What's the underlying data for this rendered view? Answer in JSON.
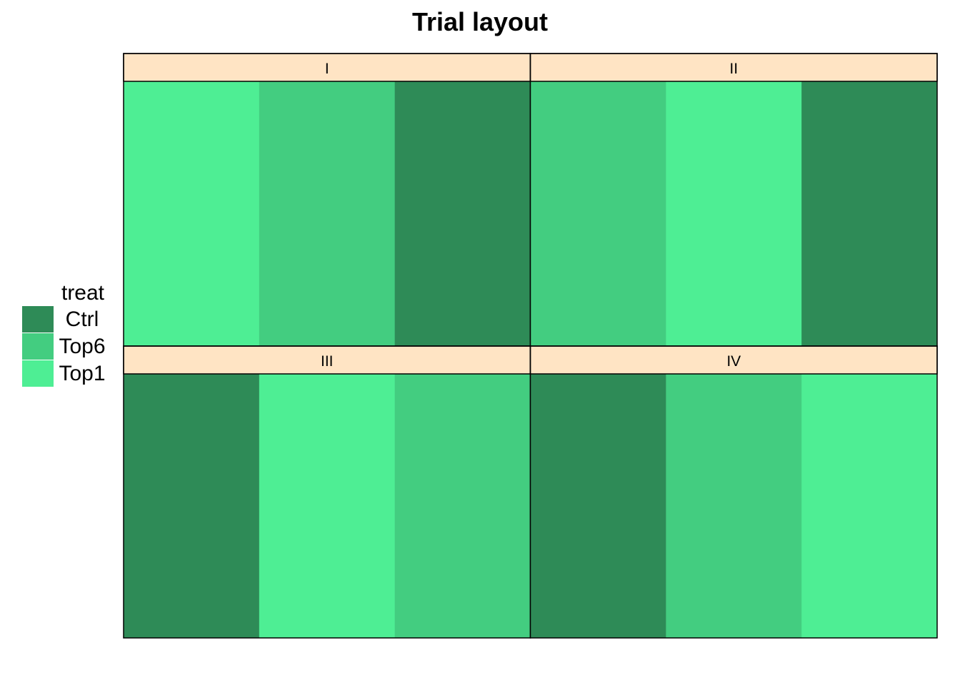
{
  "chart_data": {
    "type": "heatmap",
    "title": "Trial layout",
    "legend": {
      "title": "treat",
      "position": "left",
      "entries": [
        {
          "label": "Ctrl",
          "color": "#2e8b57"
        },
        {
          "label": "Top6",
          "color": "#43cd80"
        },
        {
          "label": "Top1",
          "color": "#4eee94"
        }
      ]
    },
    "panels": [
      {
        "label": "I",
        "plots": [
          "Top1",
          "Top6",
          "Ctrl"
        ]
      },
      {
        "label": "II",
        "plots": [
          "Top6",
          "Top1",
          "Ctrl"
        ]
      },
      {
        "label": "III",
        "plots": [
          "Ctrl",
          "Top1",
          "Top6"
        ]
      },
      {
        "label": "IV",
        "plots": [
          "Ctrl",
          "Top6",
          "Top1"
        ]
      }
    ],
    "grid": false,
    "strip_color": "#ffe4c4"
  }
}
